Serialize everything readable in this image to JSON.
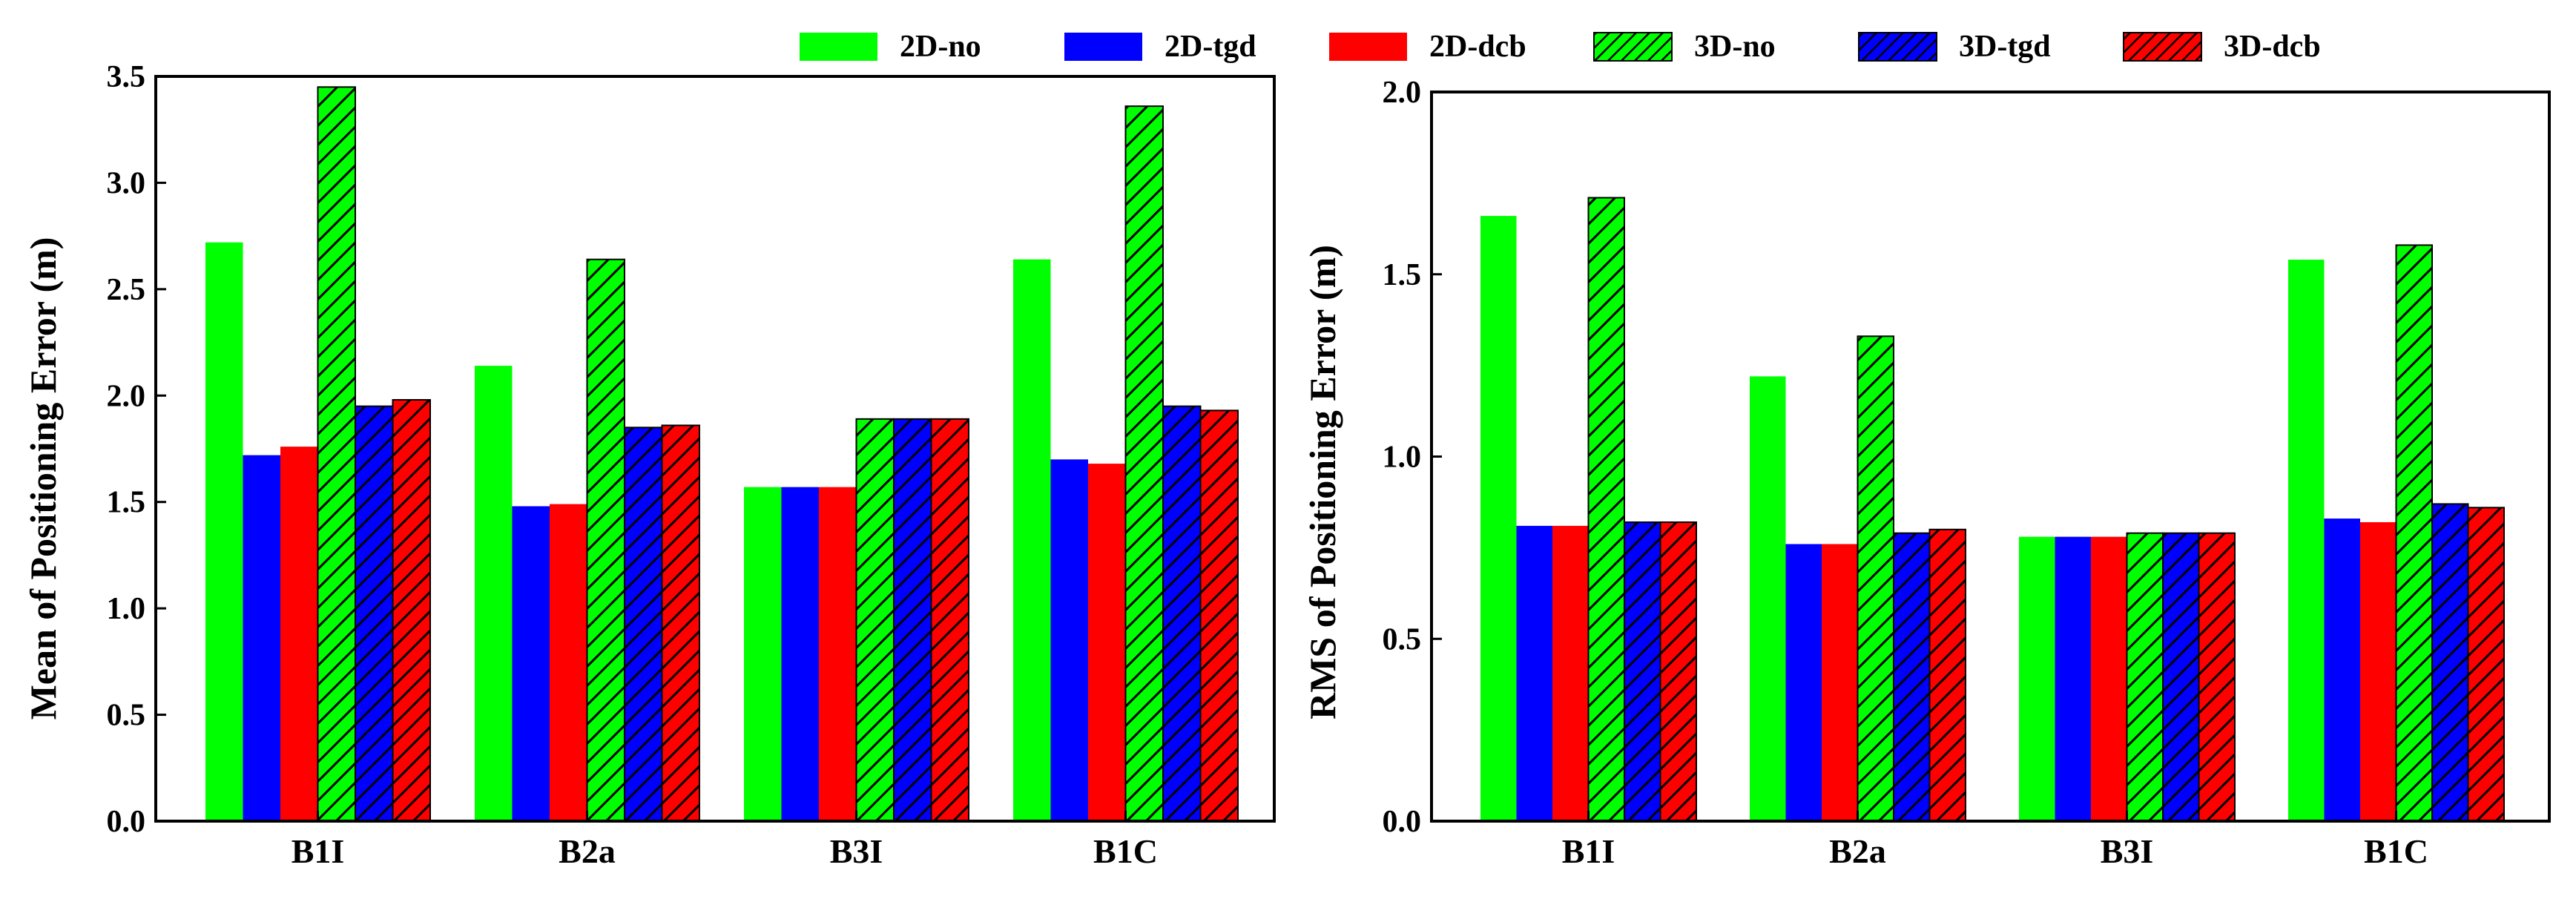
{
  "legend": [
    {
      "label": "2D-no",
      "color": "#00ff00",
      "hatch": false
    },
    {
      "label": "2D-tgd",
      "color": "#0000ff",
      "hatch": false
    },
    {
      "label": "2D-dcb",
      "color": "#ff0000",
      "hatch": false
    },
    {
      "label": "3D-no",
      "color": "#00ff00",
      "hatch": true
    },
    {
      "label": "3D-tgd",
      "color": "#0000ff",
      "hatch": true
    },
    {
      "label": "3D-dcb",
      "color": "#ff0000",
      "hatch": true
    }
  ],
  "chart_data": [
    {
      "type": "bar",
      "title": "",
      "xlabel": "",
      "ylabel": "Mean of Positioning Error (m)",
      "ylim": [
        0,
        3.5
      ],
      "yticks": [
        "0.0",
        "0.5",
        "1.0",
        "1.5",
        "2.0",
        "2.5",
        "3.0",
        "3.5"
      ],
      "categories": [
        "B1I",
        "B2a",
        "B3I",
        "B1C"
      ],
      "series": [
        {
          "name": "2D-no",
          "values": [
            2.72,
            2.14,
            1.57,
            2.64
          ]
        },
        {
          "name": "2D-tgd",
          "values": [
            1.72,
            1.48,
            1.57,
            1.7
          ]
        },
        {
          "name": "2D-dcb",
          "values": [
            1.76,
            1.49,
            1.57,
            1.68
          ]
        },
        {
          "name": "3D-no",
          "values": [
            3.45,
            2.64,
            1.89,
            3.36
          ]
        },
        {
          "name": "3D-tgd",
          "values": [
            1.95,
            1.85,
            1.89,
            1.95
          ]
        },
        {
          "name": "3D-dcb",
          "values": [
            1.98,
            1.86,
            1.89,
            1.93
          ]
        }
      ]
    },
    {
      "type": "bar",
      "title": "",
      "xlabel": "",
      "ylabel": "RMS of Positioning Error (m)",
      "ylim": [
        0,
        2.0
      ],
      "yticks": [
        "0.0",
        "0.5",
        "1.0",
        "1.5",
        "2.0"
      ],
      "categories": [
        "B1I",
        "B2a",
        "B3I",
        "B1C"
      ],
      "series": [
        {
          "name": "2D-no",
          "values": [
            1.66,
            1.22,
            0.78,
            1.54
          ]
        },
        {
          "name": "2D-tgd",
          "values": [
            0.81,
            0.76,
            0.78,
            0.83
          ]
        },
        {
          "name": "2D-dcb",
          "values": [
            0.81,
            0.76,
            0.78,
            0.82
          ]
        },
        {
          "name": "3D-no",
          "values": [
            1.71,
            1.33,
            0.79,
            1.58
          ]
        },
        {
          "name": "3D-tgd",
          "values": [
            0.82,
            0.79,
            0.79,
            0.87
          ]
        },
        {
          "name": "3D-dcb",
          "values": [
            0.82,
            0.8,
            0.79,
            0.86
          ]
        }
      ]
    }
  ]
}
